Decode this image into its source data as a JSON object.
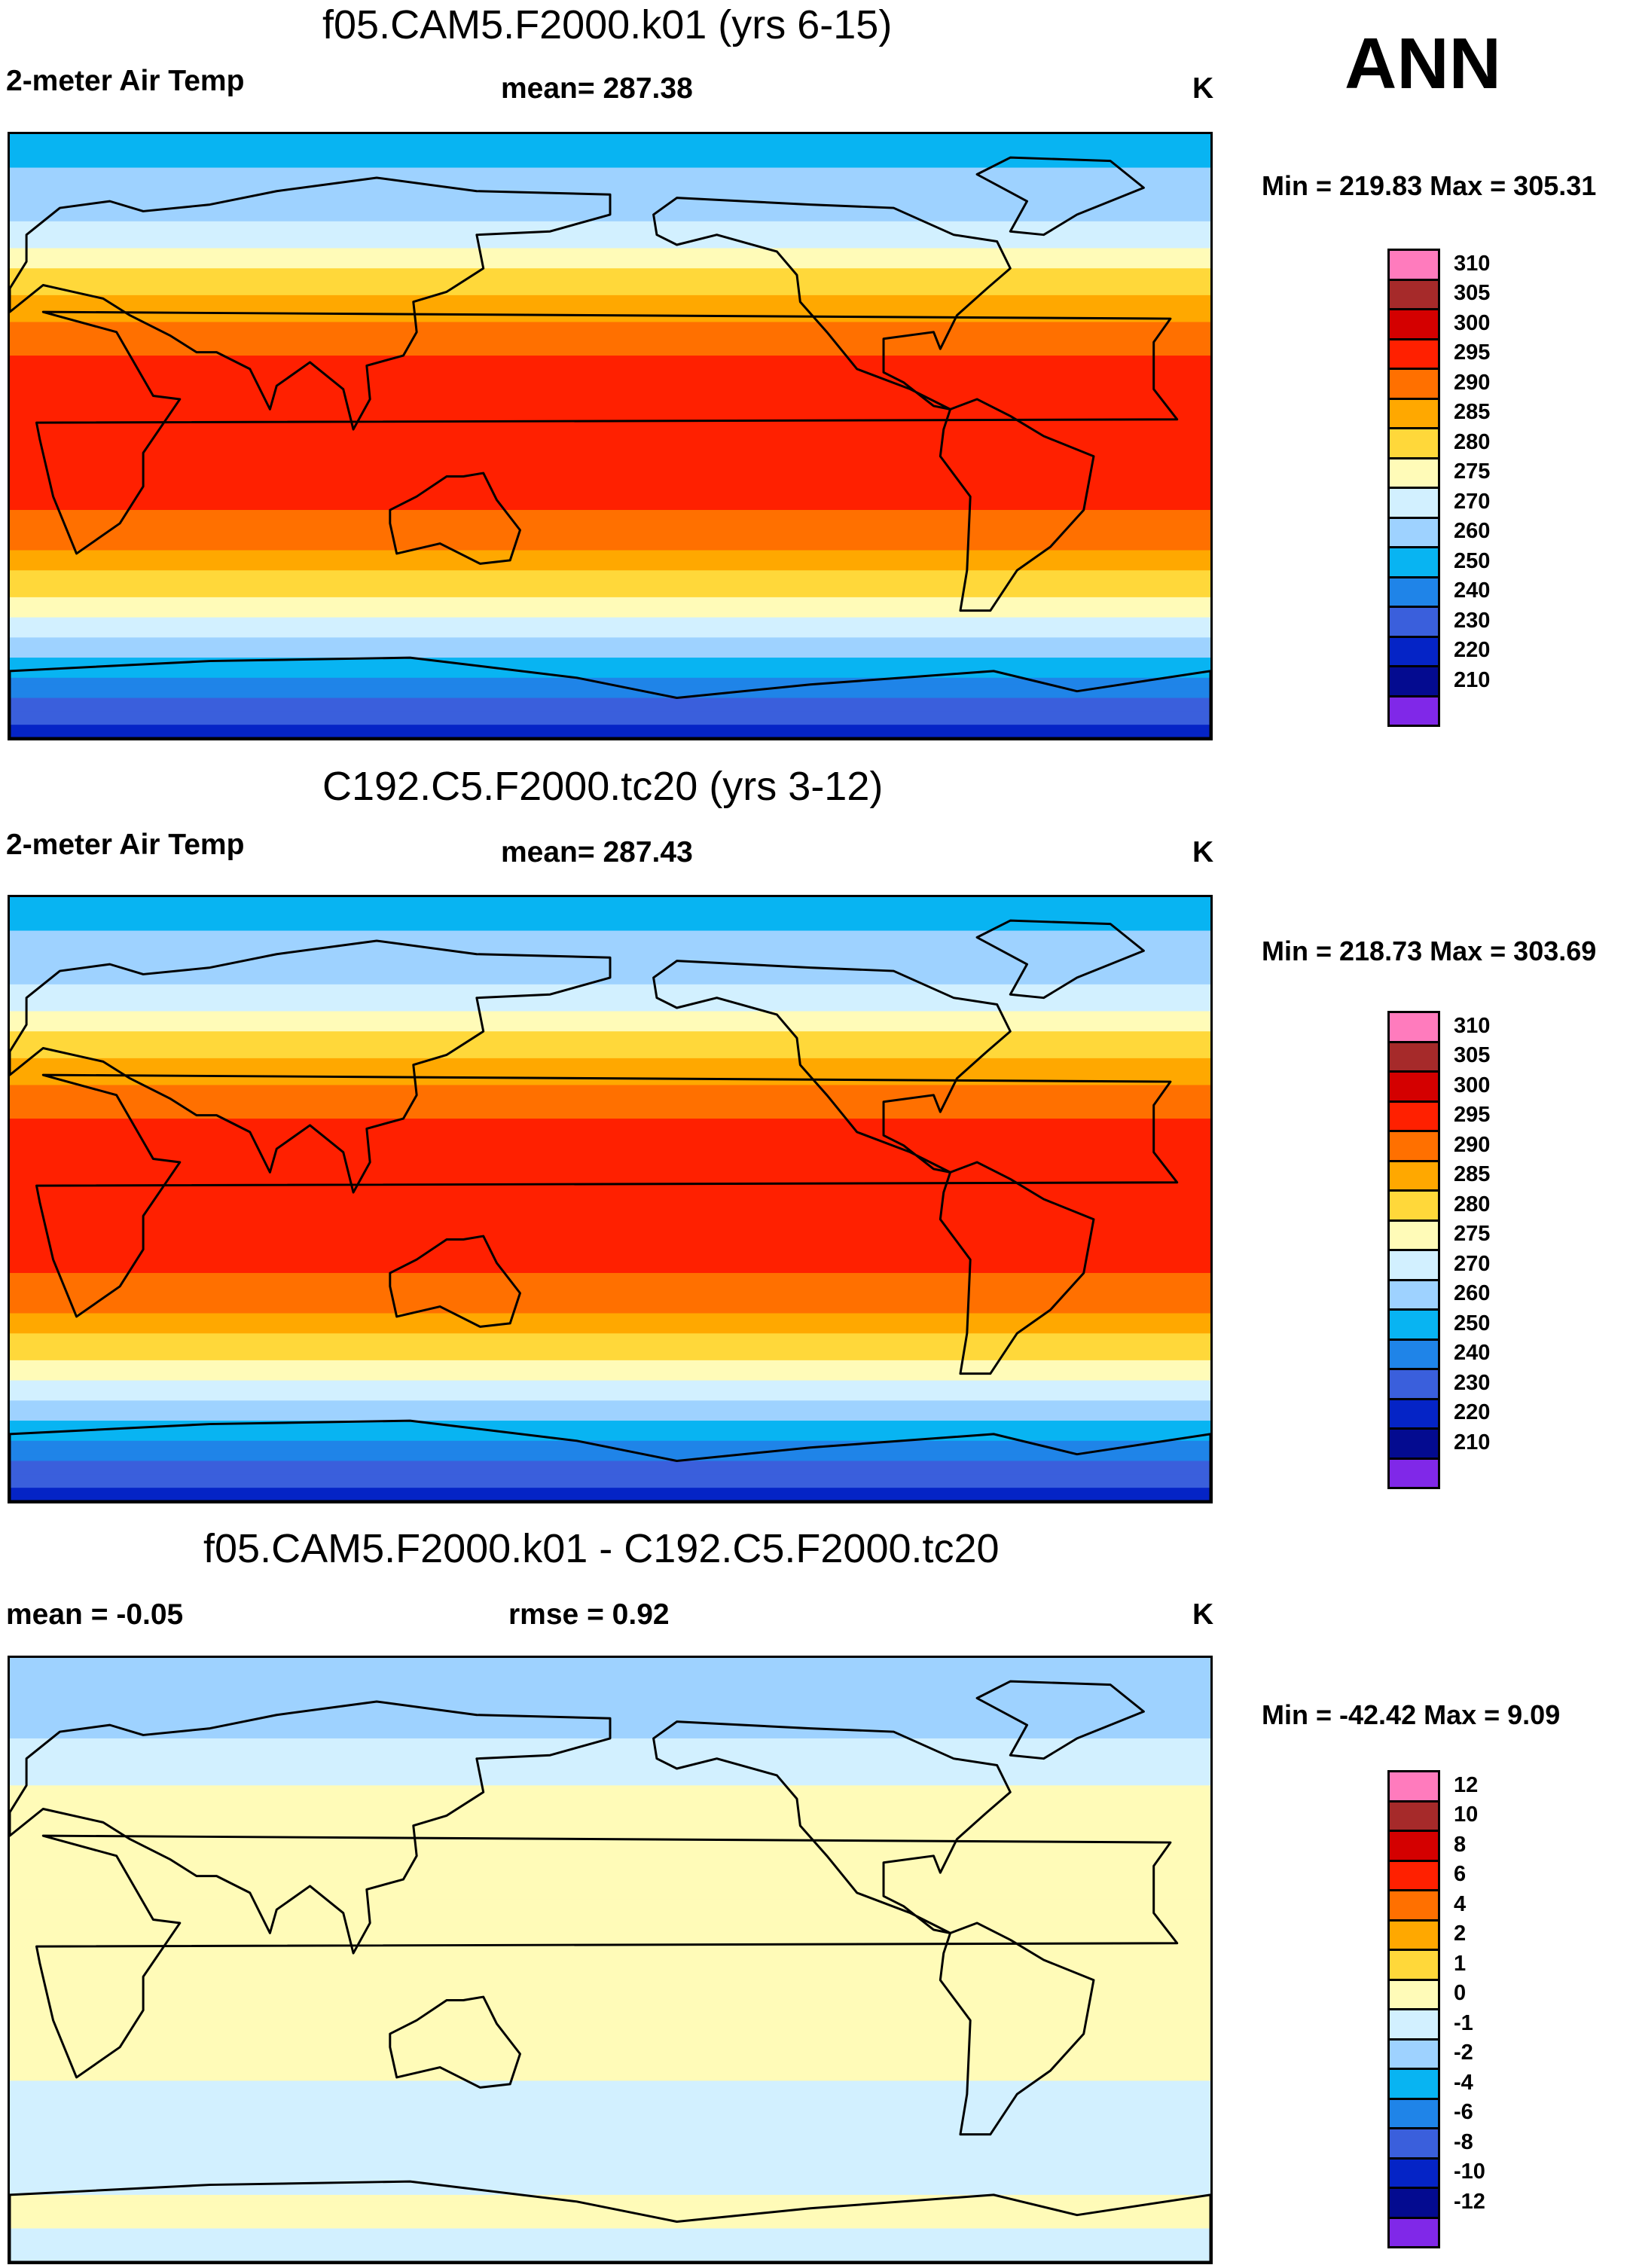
{
  "header": {
    "season": "ANN"
  },
  "chart_data": [
    {
      "type": "heatmap",
      "title": "f05.CAM5.F2000.k01 (yrs 6-15)",
      "variable": "2-meter Air Temp",
      "stat_text": "mean= 287.38",
      "units": "K",
      "minmax_text": "Min = 219.83 Max = 305.31",
      "min": 219.83,
      "max": 305.31,
      "mean": 287.38,
      "colorbar": {
        "levels": [
          "310",
          "305",
          "300",
          "295",
          "290",
          "285",
          "280",
          "275",
          "270",
          "260",
          "250",
          "240",
          "230",
          "220",
          "210"
        ],
        "colors": [
          "#ff7bbd",
          "#a62a2a",
          "#d40000",
          "#ff2000",
          "#ff7000",
          "#ffa800",
          "#ffd83a",
          "#fffbb8",
          "#d2f0ff",
          "#9ed2ff",
          "#08b4f2",
          "#1f84e8",
          "#3a5fdc",
          "#0524c6",
          "#040b90",
          "#8028e8"
        ]
      },
      "zonal_profile_K": [
        {
          "lat": 90,
          "value": 255
        },
        {
          "lat": 75,
          "value": 262
        },
        {
          "lat": 60,
          "value": 272
        },
        {
          "lat": 45,
          "value": 283
        },
        {
          "lat": 30,
          "value": 292
        },
        {
          "lat": 15,
          "value": 299
        },
        {
          "lat": 0,
          "value": 300
        },
        {
          "lat": -15,
          "value": 298
        },
        {
          "lat": -30,
          "value": 292
        },
        {
          "lat": -45,
          "value": 282
        },
        {
          "lat": -60,
          "value": 270
        },
        {
          "lat": -75,
          "value": 245
        },
        {
          "lat": -90,
          "value": 225
        }
      ]
    },
    {
      "type": "heatmap",
      "title": "C192.C5.F2000.tc20 (yrs 3-12)",
      "variable": "2-meter Air Temp",
      "stat_text": "mean= 287.43",
      "units": "K",
      "minmax_text": "Min = 218.73 Max = 303.69",
      "min": 218.73,
      "max": 303.69,
      "mean": 287.43,
      "colorbar": {
        "levels": [
          "310",
          "305",
          "300",
          "295",
          "290",
          "285",
          "280",
          "275",
          "270",
          "260",
          "250",
          "240",
          "230",
          "220",
          "210"
        ],
        "colors": [
          "#ff7bbd",
          "#a62a2a",
          "#d40000",
          "#ff2000",
          "#ff7000",
          "#ffa800",
          "#ffd83a",
          "#fffbb8",
          "#d2f0ff",
          "#9ed2ff",
          "#08b4f2",
          "#1f84e8",
          "#3a5fdc",
          "#0524c6",
          "#040b90",
          "#8028e8"
        ]
      },
      "zonal_profile_K": [
        {
          "lat": 90,
          "value": 255
        },
        {
          "lat": 75,
          "value": 262
        },
        {
          "lat": 60,
          "value": 272
        },
        {
          "lat": 45,
          "value": 283
        },
        {
          "lat": 30,
          "value": 292
        },
        {
          "lat": 15,
          "value": 299
        },
        {
          "lat": 0,
          "value": 300
        },
        {
          "lat": -15,
          "value": 298
        },
        {
          "lat": -30,
          "value": 292
        },
        {
          "lat": -45,
          "value": 282
        },
        {
          "lat": -60,
          "value": 270
        },
        {
          "lat": -75,
          "value": 245
        },
        {
          "lat": -90,
          "value": 225
        }
      ]
    },
    {
      "type": "heatmap",
      "title": "f05.CAM5.F2000.k01 - C192.C5.F2000.tc20",
      "variable": "mean =  -0.05",
      "stat_text": "rmse =   0.92",
      "units": "K",
      "minmax_text": "Min = -42.42 Max =   9.09",
      "min": -42.42,
      "max": 9.09,
      "mean": -0.05,
      "rmse": 0.92,
      "colorbar": {
        "levels": [
          "12",
          "10",
          "8",
          "6",
          "4",
          "2",
          "1",
          "0",
          "-1",
          "-2",
          "-4",
          "-6",
          "-8",
          "-10",
          "-12"
        ],
        "colors": [
          "#ff7bbd",
          "#a62a2a",
          "#d40000",
          "#ff2000",
          "#ff7000",
          "#ffa800",
          "#ffd83a",
          "#fffbb8",
          "#d2f0ff",
          "#9ed2ff",
          "#08b4f2",
          "#1f84e8",
          "#3a5fdc",
          "#0524c6",
          "#040b90",
          "#8028e8"
        ]
      },
      "zonal_profile_K": [
        {
          "lat": 90,
          "value": -1
        },
        {
          "lat": 75,
          "value": -2
        },
        {
          "lat": 60,
          "value": -0.5
        },
        {
          "lat": 45,
          "value": 0.5
        },
        {
          "lat": 30,
          "value": 0.2
        },
        {
          "lat": 15,
          "value": 0.1
        },
        {
          "lat": 0,
          "value": 0.5
        },
        {
          "lat": -15,
          "value": 0.3
        },
        {
          "lat": -30,
          "value": 0.2
        },
        {
          "lat": -45,
          "value": -0.3
        },
        {
          "lat": -60,
          "value": -1
        },
        {
          "lat": -75,
          "value": 0.5
        },
        {
          "lat": -90,
          "value": -1
        }
      ]
    }
  ]
}
